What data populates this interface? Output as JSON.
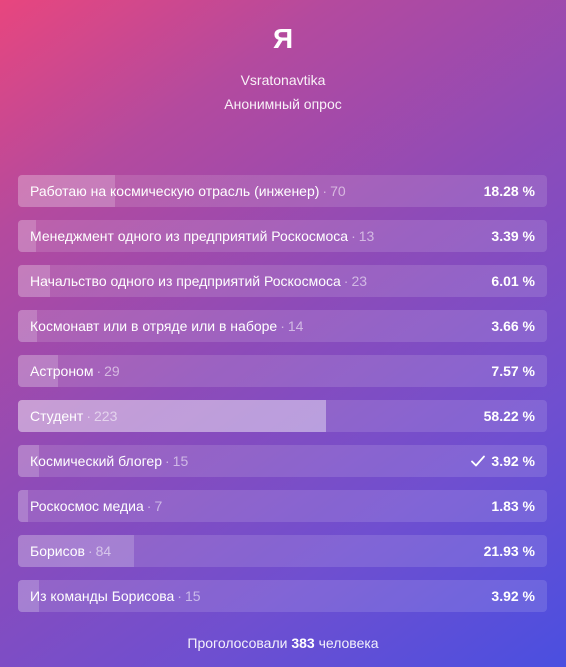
{
  "poll": {
    "title": "Я",
    "author": "Vsratonavtika",
    "subtitle": "Анонимный опрос",
    "separator": "·",
    "options": [
      {
        "label": "Работаю на космическую отрасль (инженер)",
        "count": "70",
        "percent": "18.28 %",
        "fraction": 0.1828,
        "voted": false
      },
      {
        "label": "Менеджмент одного из предприятий Роскосмоса",
        "count": "13",
        "percent": "3.39 %",
        "fraction": 0.0339,
        "voted": false
      },
      {
        "label": "Начальство одного из предприятий Роскосмоса",
        "count": "23",
        "percent": "6.01 %",
        "fraction": 0.0601,
        "voted": false
      },
      {
        "label": "Космонавт или в отряде или в наборе",
        "count": "14",
        "percent": "3.66 %",
        "fraction": 0.0366,
        "voted": false
      },
      {
        "label": "Астроном",
        "count": "29",
        "percent": "7.57 %",
        "fraction": 0.0757,
        "voted": false
      },
      {
        "label": "Студент",
        "count": "223",
        "percent": "58.22 %",
        "fraction": 0.5822,
        "voted": false
      },
      {
        "label": "Космический блогер",
        "count": "15",
        "percent": "3.92 %",
        "fraction": 0.0392,
        "voted": true
      },
      {
        "label": "Роскосмос медиа",
        "count": "7",
        "percent": "1.83 %",
        "fraction": 0.0183,
        "voted": false
      },
      {
        "label": "Борисов",
        "count": "84",
        "percent": "21.93 %",
        "fraction": 0.2193,
        "voted": false
      },
      {
        "label": "Из команды Борисова",
        "count": "15",
        "percent": "3.92 %",
        "fraction": 0.0392,
        "voted": false
      }
    ],
    "footer": {
      "prefix": "Проголосовали",
      "total": "383",
      "suffix": "человека"
    },
    "check_icon": "checkmark-icon"
  }
}
